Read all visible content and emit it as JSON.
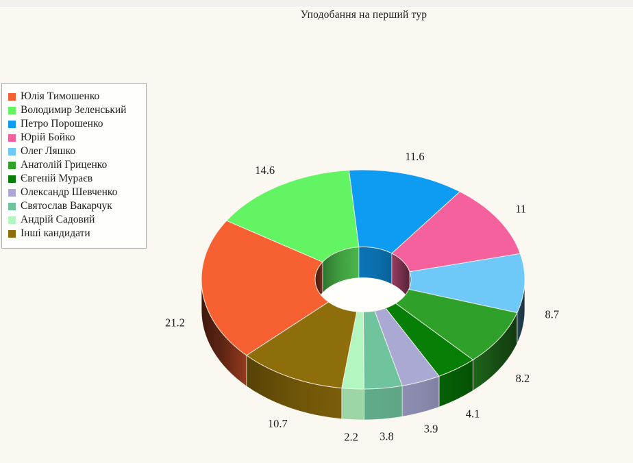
{
  "title": "Уподобання на перший тур",
  "chart_data": {
    "type": "pie",
    "subtype": "3d-donut",
    "title": "Уподобання на перший тур",
    "unit": "percent",
    "legend_position": "left",
    "start_angle_cw_from_top_deg": 226.12,
    "total": 100,
    "items": [
      {
        "label": "Юлія Тимошенко",
        "value": 21.2,
        "color": "#F76132"
      },
      {
        "label": "Володимир Зеленський",
        "value": 14.6,
        "color": "#63F463"
      },
      {
        "label": "Петро Порошенко",
        "value": 11.6,
        "color": "#0E9BF2"
      },
      {
        "label": "Юрій Бойко",
        "value": 11,
        "color": "#F5619D"
      },
      {
        "label": "Олег Ляшко",
        "value": 8.7,
        "color": "#6EC9F9"
      },
      {
        "label": "Анатолій Гриценко",
        "value": 8.2,
        "color": "#2FA02A"
      },
      {
        "label": "Євгеній Мураєв",
        "value": 4.1,
        "color": "#077F07"
      },
      {
        "label": "Олександр Шевченко",
        "value": 3.9,
        "color": "#A9A9D4"
      },
      {
        "label": "Святослав Вакарчук",
        "value": 3.8,
        "color": "#6FC49E"
      },
      {
        "label": "Андрій Садовий",
        "value": 2.2,
        "color": "#B4F6BF"
      },
      {
        "label": "Інші кандидати",
        "value": 10.7,
        "color": "#8E6D0B"
      }
    ],
    "colors": {
      "background": "#FBF8F1",
      "top_strip": "#F2F1EF",
      "legend_background": "#FEFEFC",
      "legend_border": "#ABABAB",
      "text": "#1c1c1c",
      "hole": "#FFFEFB"
    }
  }
}
